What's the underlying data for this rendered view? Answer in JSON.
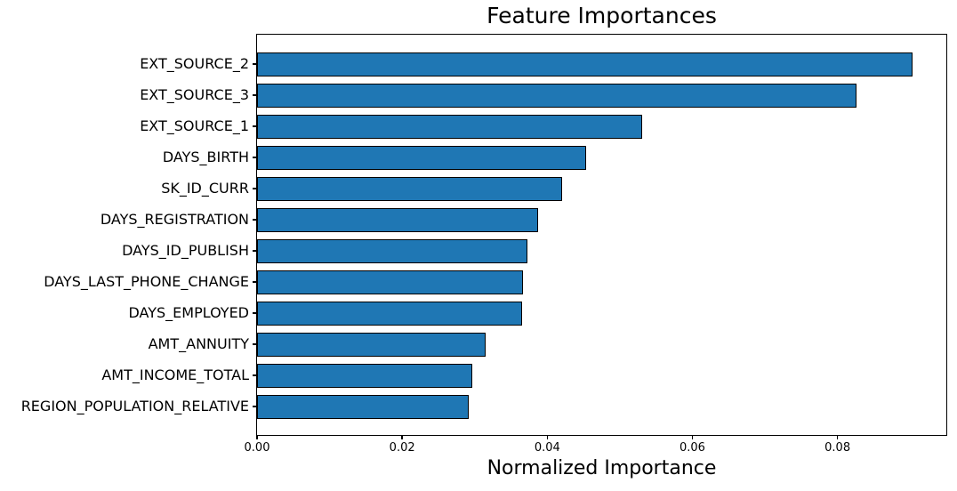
{
  "chart_data": {
    "type": "bar",
    "orientation": "horizontal",
    "title": "Feature Importances",
    "xlabel": "Normalized Importance",
    "ylabel": "",
    "categories": [
      "EXT_SOURCE_2",
      "EXT_SOURCE_3",
      "EXT_SOURCE_1",
      "DAYS_BIRTH",
      "SK_ID_CURR",
      "DAYS_REGISTRATION",
      "DAYS_ID_PUBLISH",
      "DAYS_LAST_PHONE_CHANGE",
      "DAYS_EMPLOYED",
      "AMT_ANNUITY",
      "AMT_INCOME_TOTAL",
      "REGION_POPULATION_RELATIVE"
    ],
    "values": [
      0.0904,
      0.0826,
      0.0531,
      0.0454,
      0.0421,
      0.0387,
      0.0373,
      0.0366,
      0.0365,
      0.0315,
      0.0297,
      0.0292
    ],
    "xlim": [
      0,
      0.095
    ],
    "xticks": [
      0.0,
      0.02,
      0.04,
      0.06,
      0.08
    ],
    "xtick_labels": [
      "0.00",
      "0.02",
      "0.04",
      "0.06",
      "0.08"
    ],
    "grid": false,
    "legend": null,
    "bar_color": "#1f77b4",
    "bar_edge_color": "#000000",
    "background_color": "#ffffff"
  }
}
